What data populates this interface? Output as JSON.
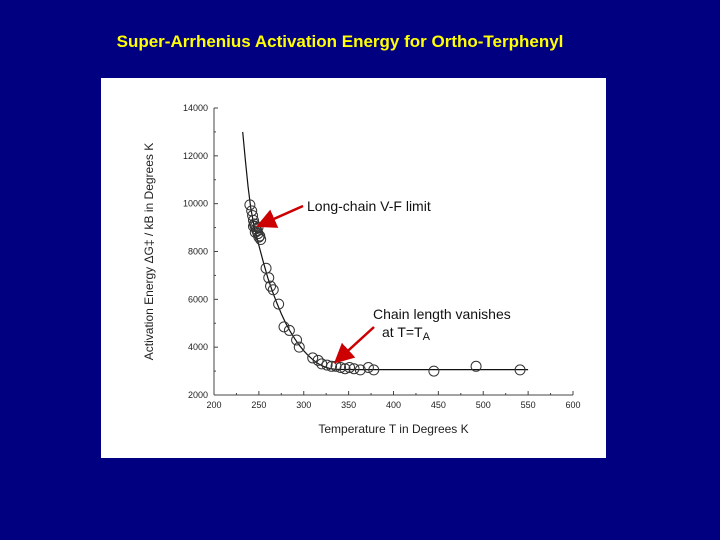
{
  "slide": {
    "title": "Super-Arrhenius Activation Energy for Ortho-Terphenyl"
  },
  "colors": {
    "background": "#000080",
    "title": "#ffff00",
    "arrow": "#cc0000",
    "panel": "#ffffff"
  },
  "chart_data": {
    "type": "scatter",
    "xlabel": "Temperature T in Degrees K",
    "ylabel": "Activation Energy ΔG‡ / kB in Degrees K",
    "xlim": [
      200,
      600
    ],
    "ylim": [
      2000,
      14000
    ],
    "x_ticks": [
      200,
      250,
      300,
      350,
      400,
      450,
      500,
      550,
      600
    ],
    "y_ticks": [
      2000,
      4000,
      6000,
      8000,
      10000,
      12000,
      14000
    ],
    "x_tick_labels": [
      "200",
      "250",
      "300",
      "350",
      "400",
      "450",
      "500",
      "550",
      "600"
    ],
    "y_tick_labels": [
      "2000",
      "4000",
      "6000",
      "8000",
      "10000",
      "12000",
      "14000"
    ],
    "grid": false,
    "series": [
      {
        "marker": "open-circle",
        "points": [
          [
            240,
            9950
          ],
          [
            242,
            9700
          ],
          [
            243,
            9500
          ],
          [
            244,
            9300
          ],
          [
            245,
            9150
          ],
          [
            246,
            9050
          ],
          [
            247,
            8950
          ],
          [
            248,
            8850
          ],
          [
            249,
            8750
          ],
          [
            250,
            8600
          ],
          [
            252,
            8500
          ],
          [
            244,
            9050
          ],
          [
            246,
            8800
          ],
          [
            249,
            9000
          ],
          [
            251,
            8650
          ],
          [
            258,
            7300
          ],
          [
            261,
            6900
          ],
          [
            263,
            6550
          ],
          [
            266,
            6400
          ],
          [
            272,
            5800
          ],
          [
            278,
            4850
          ],
          [
            284,
            4700
          ],
          [
            292,
            4300
          ],
          [
            295,
            4000
          ],
          [
            310,
            3550
          ],
          [
            316,
            3450
          ],
          [
            320,
            3300
          ],
          [
            326,
            3250
          ],
          [
            331,
            3200
          ],
          [
            336,
            3200
          ],
          [
            341,
            3150
          ],
          [
            346,
            3100
          ],
          [
            351,
            3150
          ],
          [
            356,
            3100
          ],
          [
            363,
            3050
          ],
          [
            372,
            3150
          ],
          [
            378,
            3050
          ],
          [
            445,
            3000
          ],
          [
            492,
            3200
          ],
          [
            541,
            3050
          ]
        ]
      },
      {
        "marker": "line",
        "points": [
          [
            232,
            13000
          ],
          [
            235,
            11800
          ],
          [
            238,
            10700
          ],
          [
            241,
            9800
          ],
          [
            245,
            9000
          ],
          [
            250,
            8250
          ],
          [
            255,
            7550
          ],
          [
            260,
            6900
          ],
          [
            265,
            6350
          ],
          [
            270,
            5850
          ],
          [
            275,
            5400
          ],
          [
            280,
            5000
          ],
          [
            285,
            4650
          ],
          [
            290,
            4350
          ],
          [
            295,
            4080
          ],
          [
            300,
            3850
          ],
          [
            305,
            3650
          ],
          [
            310,
            3480
          ],
          [
            315,
            3340
          ],
          [
            320,
            3230
          ],
          [
            325,
            3150
          ],
          [
            330,
            3100
          ],
          [
            335,
            3080
          ],
          [
            340,
            3070
          ],
          [
            360,
            3060
          ],
          [
            400,
            3060
          ],
          [
            450,
            3060
          ],
          [
            500,
            3060
          ],
          [
            550,
            3060
          ]
        ]
      }
    ],
    "annotations": [
      {
        "text": "Long-chain V-F limit",
        "arrow_to": [
          243,
          9200
        ]
      },
      {
        "text": "Chain length vanishes",
        "text2": "at T=T",
        "subscript": "A",
        "arrow_to": [
          331,
          3200
        ]
      }
    ]
  }
}
